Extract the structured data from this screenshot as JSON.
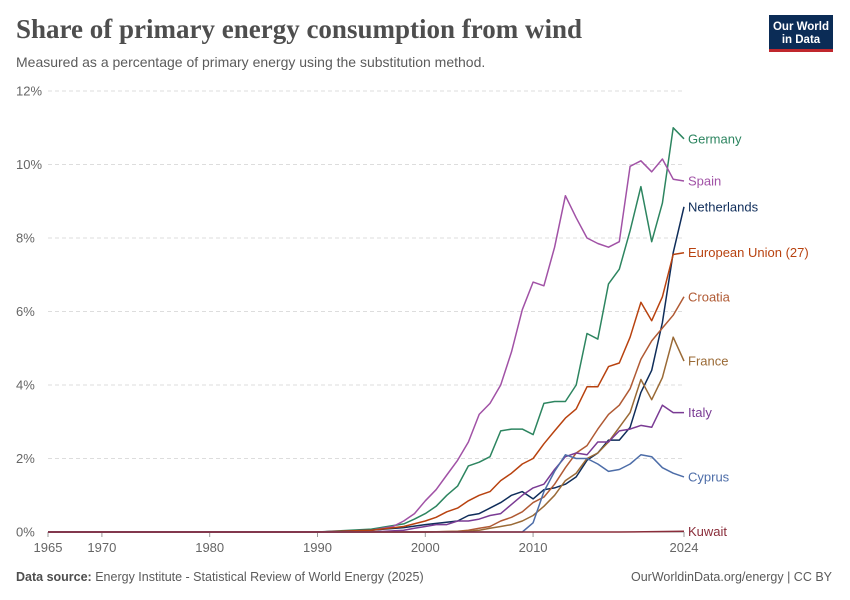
{
  "header": {
    "title": "Share of primary energy consumption from wind",
    "subtitle": "Measured as a percentage of primary energy using the substitution method.",
    "logo": "Our World in Data"
  },
  "footer": {
    "source_label": "Data source:",
    "source_text": "Energy Institute - Statistical Review of World Energy (2025)",
    "right_text": "OurWorldinData.org/energy | CC BY"
  },
  "chart_data": {
    "type": "line",
    "ylim": [
      0,
      12
    ],
    "xlim": [
      1965,
      2024
    ],
    "y_ticks": [
      0,
      2,
      4,
      6,
      8,
      10,
      12
    ],
    "y_tick_labels": [
      "0%",
      "2%",
      "4%",
      "6%",
      "8%",
      "10%",
      "12%"
    ],
    "x_ticks": [
      1965,
      1970,
      1980,
      1990,
      2000,
      2010,
      2024
    ],
    "grid": true,
    "legend": "inline-right",
    "series": [
      {
        "name": "Germany",
        "color": "#2d8560",
        "x": [
          1965,
          1990,
          1995,
          1998,
          1999,
          2000,
          2001,
          2002,
          2003,
          2004,
          2005,
          2006,
          2007,
          2008,
          2009,
          2010,
          2011,
          2012,
          2013,
          2014,
          2015,
          2016,
          2017,
          2018,
          2019,
          2020,
          2021,
          2022,
          2023,
          2024
        ],
        "y": [
          0,
          0,
          0.08,
          0.22,
          0.35,
          0.5,
          0.7,
          1.0,
          1.25,
          1.8,
          1.9,
          2.05,
          2.75,
          2.8,
          2.8,
          2.65,
          3.5,
          3.55,
          3.55,
          4.0,
          5.4,
          5.25,
          6.75,
          7.15,
          8.2,
          9.4,
          7.9,
          8.95,
          11.0,
          10.7
        ]
      },
      {
        "name": "Spain",
        "color": "#a152a6",
        "x": [
          1965,
          1990,
          1995,
          1997,
          1998,
          1999,
          2000,
          2001,
          2002,
          2003,
          2004,
          2005,
          2006,
          2007,
          2008,
          2009,
          2010,
          2011,
          2012,
          2013,
          2014,
          2015,
          2016,
          2017,
          2018,
          2019,
          2020,
          2021,
          2022,
          2023,
          2024
        ],
        "y": [
          0,
          0,
          0.05,
          0.15,
          0.3,
          0.5,
          0.85,
          1.15,
          1.55,
          1.95,
          2.45,
          3.2,
          3.5,
          4.0,
          4.9,
          6.05,
          6.8,
          6.7,
          7.75,
          9.15,
          8.55,
          8.0,
          7.85,
          7.75,
          7.9,
          9.95,
          10.1,
          9.8,
          10.15,
          9.6,
          9.55
        ]
      },
      {
        "name": "Netherlands",
        "color": "#0f2d5a",
        "x": [
          1965,
          1990,
          1995,
          1998,
          2000,
          2003,
          2004,
          2005,
          2006,
          2007,
          2008,
          2009,
          2010,
          2011,
          2012,
          2013,
          2014,
          2015,
          2016,
          2017,
          2018,
          2019,
          2020,
          2021,
          2022,
          2023,
          2024
        ],
        "y": [
          0,
          0,
          0.05,
          0.12,
          0.2,
          0.3,
          0.45,
          0.5,
          0.65,
          0.8,
          1.0,
          1.1,
          0.9,
          1.15,
          1.2,
          1.3,
          1.5,
          1.95,
          2.15,
          2.5,
          2.5,
          2.85,
          3.8,
          4.4,
          5.7,
          7.6,
          8.85
        ]
      },
      {
        "name": "European Union (27)",
        "color": "#b8420f",
        "x": [
          1965,
          1990,
          1995,
          1998,
          2000,
          2001,
          2002,
          2003,
          2004,
          2005,
          2006,
          2007,
          2008,
          2009,
          2010,
          2011,
          2012,
          2013,
          2014,
          2015,
          2016,
          2017,
          2018,
          2019,
          2020,
          2021,
          2022,
          2023,
          2024
        ],
        "y": [
          0,
          0,
          0.05,
          0.15,
          0.3,
          0.4,
          0.55,
          0.65,
          0.85,
          1.0,
          1.1,
          1.4,
          1.6,
          1.85,
          2.0,
          2.4,
          2.75,
          3.1,
          3.35,
          3.95,
          3.95,
          4.5,
          4.6,
          5.3,
          6.25,
          5.75,
          6.4,
          7.55,
          7.6
        ]
      },
      {
        "name": "Croatia",
        "color": "#b05a34",
        "x": [
          1965,
          2000,
          2003,
          2004,
          2005,
          2006,
          2007,
          2008,
          2009,
          2010,
          2011,
          2012,
          2013,
          2014,
          2015,
          2016,
          2017,
          2018,
          2019,
          2020,
          2021,
          2022,
          2023,
          2024
        ],
        "y": [
          0,
          0,
          0.02,
          0.05,
          0.1,
          0.15,
          0.3,
          0.4,
          0.55,
          0.8,
          0.95,
          1.3,
          1.75,
          2.15,
          2.35,
          2.8,
          3.2,
          3.45,
          3.9,
          4.7,
          5.2,
          5.55,
          5.9,
          6.4
        ]
      },
      {
        "name": "France",
        "color": "#9a6a36",
        "x": [
          1965,
          2000,
          2004,
          2005,
          2006,
          2007,
          2008,
          2009,
          2010,
          2011,
          2012,
          2013,
          2014,
          2015,
          2016,
          2017,
          2018,
          2019,
          2020,
          2021,
          2022,
          2023,
          2024
        ],
        "y": [
          0,
          0,
          0.02,
          0.05,
          0.1,
          0.15,
          0.2,
          0.3,
          0.45,
          0.7,
          1.0,
          1.4,
          1.6,
          2.0,
          2.15,
          2.45,
          2.85,
          3.25,
          4.15,
          3.6,
          4.2,
          5.3,
          4.65
        ]
      },
      {
        "name": "Italy",
        "color": "#7a3b94",
        "x": [
          1965,
          1995,
          1998,
          1999,
          2000,
          2001,
          2002,
          2003,
          2004,
          2005,
          2006,
          2007,
          2008,
          2009,
          2010,
          2011,
          2012,
          2013,
          2014,
          2015,
          2016,
          2017,
          2018,
          2019,
          2020,
          2021,
          2022,
          2023,
          2024
        ],
        "y": [
          0,
          0,
          0.05,
          0.1,
          0.15,
          0.2,
          0.2,
          0.3,
          0.3,
          0.35,
          0.45,
          0.5,
          0.75,
          1.0,
          1.2,
          1.3,
          1.7,
          2.05,
          2.15,
          2.1,
          2.45,
          2.45,
          2.75,
          2.8,
          2.9,
          2.85,
          3.45,
          3.25,
          3.25
        ]
      },
      {
        "name": "Cyprus",
        "color": "#4d6da8",
        "x": [
          1965,
          2009,
          2010,
          2011,
          2012,
          2013,
          2014,
          2015,
          2016,
          2017,
          2018,
          2019,
          2020,
          2021,
          2022,
          2023,
          2024
        ],
        "y": [
          0,
          0,
          0.25,
          1.1,
          1.65,
          2.1,
          2.0,
          2.0,
          1.85,
          1.65,
          1.7,
          1.85,
          2.1,
          2.05,
          1.75,
          1.6,
          1.5
        ]
      },
      {
        "name": "Kuwait",
        "color": "#8a2d3a",
        "x": [
          1965,
          2018,
          2024
        ],
        "y": [
          0,
          0,
          0.02
        ]
      }
    ]
  }
}
